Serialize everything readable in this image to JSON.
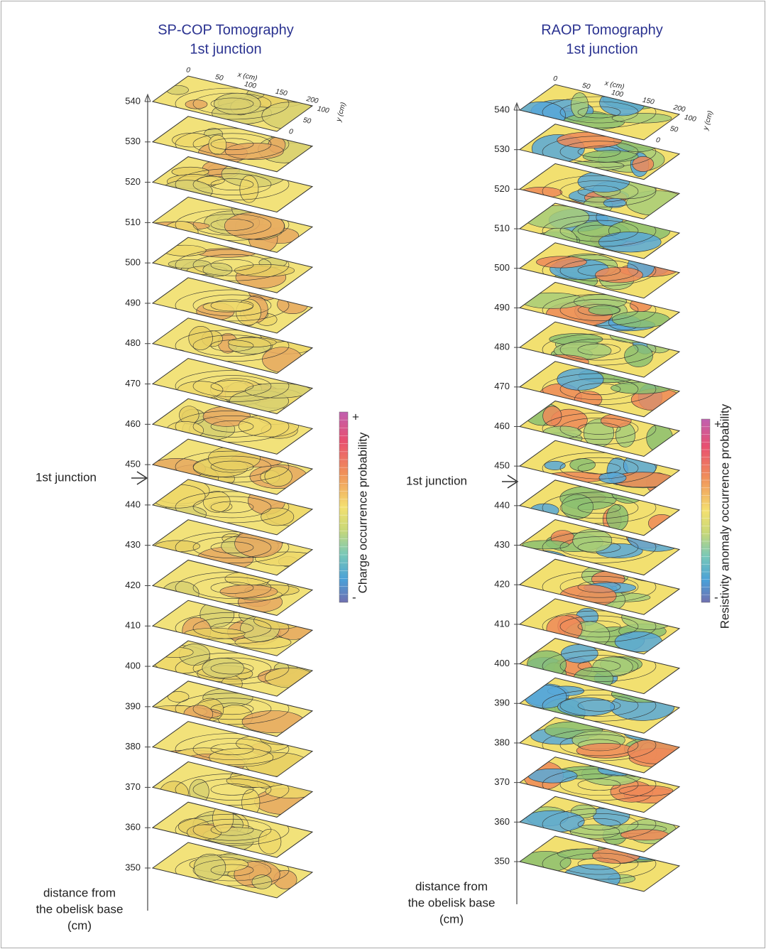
{
  "panels": [
    {
      "title": "SP-COP Tomography",
      "subtitle": "1st  junction",
      "depth_ticks": [
        540,
        530,
        520,
        510,
        500,
        490,
        480,
        470,
        460,
        450,
        440,
        430,
        420,
        410,
        400,
        390,
        380,
        370,
        360,
        350
      ],
      "junction_label": "1st junction",
      "colorbar_label": "Charge occurrence probability",
      "colorbar_plus": "+",
      "colorbar_minus": "-",
      "x_axis_label": "x (cm)",
      "x_ticks": [
        0,
        50,
        100,
        150,
        200
      ],
      "y_axis_label": "y (cm)",
      "y_ticks": [
        100,
        50,
        0
      ],
      "depth_label": [
        "distance from",
        "the obelisk base",
        "(cm)"
      ]
    },
    {
      "title": "RAOP Tomography",
      "subtitle": "1st  junction",
      "depth_ticks": [
        540,
        530,
        520,
        510,
        500,
        490,
        480,
        470,
        460,
        450,
        440,
        430,
        420,
        410,
        400,
        390,
        380,
        370,
        360,
        350
      ],
      "junction_label": "1st junction",
      "colorbar_label": "Resistivity anomaly occurrence probability",
      "colorbar_plus": "+",
      "colorbar_minus": "-",
      "x_axis_label": "x (cm)",
      "x_ticks": [
        0,
        50,
        100,
        150,
        200
      ],
      "y_axis_label": "y (cm)",
      "y_ticks": [
        100,
        50,
        0
      ],
      "depth_label": [
        "distance from",
        "the obelisk base",
        "(cm)"
      ]
    }
  ]
}
